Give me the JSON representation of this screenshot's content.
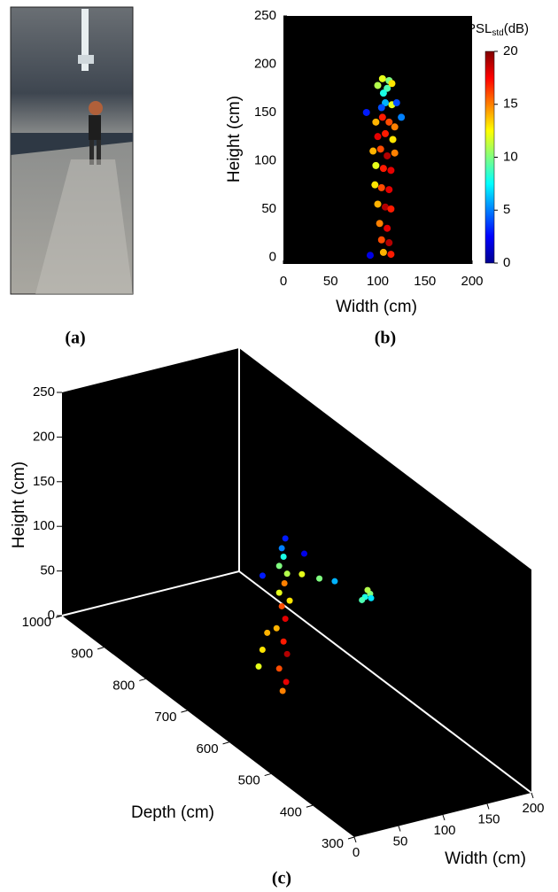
{
  "panels": [
    "(a)",
    "(b)",
    "(c)"
  ],
  "chart_data": [
    {
      "type": "scatter",
      "xlabel": "Width (cm)",
      "ylabel": "Height (cm)",
      "xlim": [
        0,
        200
      ],
      "ylim": [
        -7,
        250
      ],
      "xticks": [
        0,
        50,
        100,
        150,
        200
      ],
      "yticks": [
        0,
        50,
        100,
        150,
        200,
        250
      ],
      "colorbar": {
        "label": [
          "PSL",
          "std",
          "(dB)"
        ],
        "lim": [
          0,
          20
        ],
        "ticks": [
          0,
          5,
          10,
          15,
          20
        ]
      },
      "x": [
        105,
        112,
        100,
        110,
        115,
        106,
        108,
        104,
        115,
        98,
        105,
        112,
        118,
        100,
        108,
        116,
        95,
        103,
        110,
        118,
        98,
        106,
        114,
        97,
        104,
        112,
        100,
        108,
        114,
        102,
        110,
        104,
        112,
        106,
        114,
        88,
        125,
        92,
        120
      ],
      "y": [
        185,
        183,
        178,
        175,
        180,
        170,
        160,
        155,
        158,
        140,
        145,
        140,
        135,
        125,
        128,
        122,
        110,
        112,
        105,
        108,
        95,
        92,
        90,
        75,
        72,
        70,
        55,
        52,
        50,
        35,
        30,
        18,
        15,
        5,
        3,
        150,
        145,
        2,
        160
      ],
      "c": [
        12,
        10,
        11,
        9,
        13,
        8,
        6,
        4,
        12,
        14,
        17,
        16,
        15,
        18,
        17,
        13,
        14,
        16,
        19,
        15,
        12,
        17,
        18,
        13,
        16,
        18,
        14,
        19,
        17,
        15,
        18,
        16,
        19,
        14,
        17,
        3,
        5,
        2,
        4
      ]
    },
    {
      "type": "scatter3d",
      "xlabel": "Width (cm)",
      "ylabel": "Depth (cm)",
      "zlabel": "Height (cm)",
      "xlim": [
        0,
        200
      ],
      "ylim": [
        300,
        1000
      ],
      "zlim": [
        0,
        250
      ],
      "xticks": [
        0,
        50,
        100,
        150,
        200
      ],
      "yticks": [
        300,
        400,
        500,
        600,
        700,
        800,
        900,
        1000
      ],
      "zticks": [
        0,
        50,
        100,
        150,
        200,
        250
      ],
      "x": [
        103,
        106,
        100,
        108,
        104,
        98,
        106,
        102,
        110,
        100,
        105,
        108,
        100,
        104,
        102,
        106,
        90,
        92,
        95,
        120,
        135,
        150,
        178,
        182,
        176,
        184,
        180,
        85,
        125
      ],
      "y": [
        690,
        688,
        692,
        690,
        690,
        694,
        690,
        690,
        688,
        692,
        690,
        690,
        692,
        690,
        690,
        690,
        720,
        715,
        710,
        680,
        670,
        665,
        652,
        648,
        655,
        650,
        650,
        700,
        685
      ],
      "z": [
        0,
        10,
        25,
        40,
        55,
        70,
        80,
        95,
        100,
        110,
        120,
        130,
        140,
        150,
        160,
        170,
        20,
        40,
        60,
        130,
        125,
        120,
        100,
        104,
        96,
        98,
        108,
        130,
        150
      ],
      "c": [
        15,
        18,
        16,
        19,
        17,
        14,
        18,
        16,
        13,
        12,
        15,
        11,
        10,
        8,
        5,
        3,
        12,
        13,
        14,
        12,
        10,
        6,
        8,
        10,
        9,
        7,
        11,
        3,
        2
      ]
    }
  ]
}
